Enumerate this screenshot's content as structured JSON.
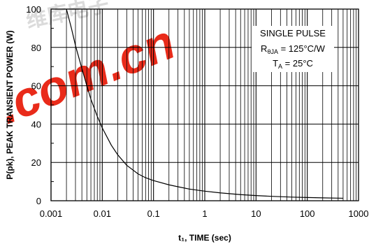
{
  "watermark": {
    "text": ".com.cn",
    "cjk": "维库电子",
    "color": "#e8200e",
    "cjk_color": "#9a9a9a"
  },
  "chart_data": {
    "type": "line",
    "x_scale": "log",
    "xlim": [
      0.001,
      1000
    ],
    "ylim": [
      0,
      100
    ],
    "x_tick_labels": [
      "0.001",
      "0.01",
      "0.1",
      "1",
      "10",
      "100",
      "1000"
    ],
    "y_tick_labels": [
      "0",
      "20",
      "40",
      "60",
      "80",
      "100"
    ],
    "xlabel": "t₁, TIME (sec)",
    "ylabel": "P(pk), PEAK TRANSIENT POWER (W)",
    "grid": true,
    "annotations": {
      "line1": "SINGLE PULSE",
      "line2_main": "R",
      "line2_sub": "θJA",
      "line2_rest": " = 125°C/W",
      "line3_main": "T",
      "line3_sub": "A",
      "line3_rest": " = 25°C"
    },
    "series": [
      {
        "x": [
          0.002,
          0.0025,
          0.003,
          0.004,
          0.005,
          0.006,
          0.008,
          0.01,
          0.015,
          0.02,
          0.03,
          0.05,
          0.07,
          0.1,
          0.2,
          0.3,
          0.5,
          1,
          2,
          5,
          10,
          20,
          50,
          100,
          200,
          500
        ],
        "y": [
          100,
          90,
          81,
          69,
          60,
          53,
          44,
          38,
          29,
          24,
          18.5,
          14,
          12,
          10.5,
          8.3,
          7.3,
          6.1,
          5,
          4.1,
          3.2,
          2.7,
          2.3,
          1.9,
          1.7,
          1.5,
          1.3
        ]
      }
    ]
  }
}
